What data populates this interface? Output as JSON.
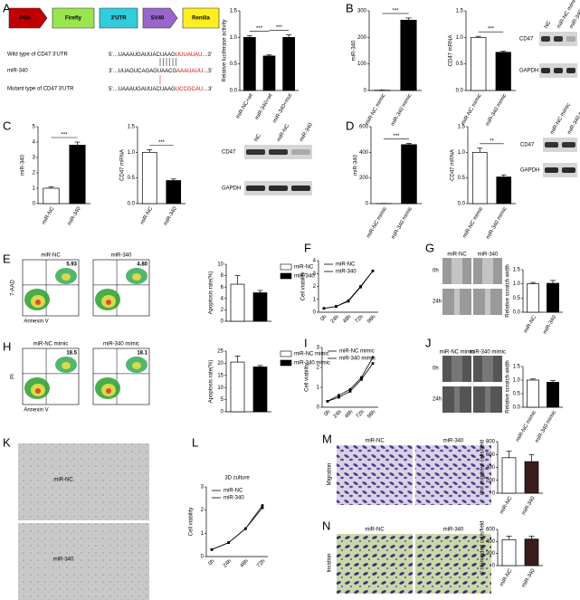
{
  "panel_labels": [
    "A",
    "B",
    "C",
    "D",
    "E",
    "F",
    "G",
    "H",
    "I",
    "J",
    "K",
    "L",
    "M",
    "N"
  ],
  "construct": {
    "parts": [
      "PGK",
      "Firefly",
      "3'UTR",
      "SV40",
      "Renilla"
    ],
    "rows": [
      {
        "label": "Wild type of CD47 3'UTR",
        "seq": "5'…UAAAUGAUUACUAAG",
        "site": "UUUAUAU",
        "end": "…3'"
      },
      {
        "label": "miR-340",
        "seq": "3'…UUAGUCAGAGUAACG",
        "site": "AAAUAUU",
        "end": "…5'"
      },
      {
        "label": "Mutant type of CD47 3'UTR",
        "seq": "5'…UAAAUGAUUACUAAG",
        "site": "UCCGCAU",
        "end": "…3'"
      }
    ]
  },
  "blots": {
    "B": {
      "lanes": [
        "NC",
        "miR-NC mimic",
        "miR-340 mimic"
      ],
      "rows": [
        "CD47",
        "GAPDH"
      ]
    },
    "C": {
      "lanes": [
        "NC",
        "miR-NC",
        "miR-340"
      ],
      "rows": [
        "CD47",
        "GAPDH"
      ]
    },
    "D": {
      "lanes": [
        "miR-NC mimic",
        "miR-340 mimic"
      ],
      "rows": [
        "CD47",
        "GAPDH"
      ]
    }
  },
  "flow": {
    "E": {
      "plots": [
        {
          "title": "miR-NC",
          "value": "5.93"
        },
        {
          "title": "miR-340",
          "value": "4.80"
        }
      ],
      "ylabel": "7-AAD",
      "xlabel": "Annexin V"
    },
    "H": {
      "plots": [
        {
          "title": "miR-NC mimic",
          "value": "18.5"
        },
        {
          "title": "miR-340 mimic",
          "value": "18.1"
        }
      ],
      "ylabel": "PI",
      "xlabel": "Annexin V"
    }
  },
  "scratch": {
    "G": {
      "cols": [
        "miR-NC",
        "miR-340"
      ],
      "rows": [
        "0h",
        "24h"
      ]
    },
    "J": {
      "cols": [
        "miR-NC mimic",
        "miR-340 mimic"
      ],
      "rows": [
        "0h",
        "24h"
      ]
    }
  },
  "sphere": {
    "rows": [
      "miR-NC",
      "miR-340"
    ]
  },
  "transwell": {
    "cols": [
      "miR-NC",
      "miR-340"
    ],
    "rows": [
      "Migration",
      "Invation"
    ]
  },
  "chart_data": [
    {
      "type": "bar",
      "ylabel": "Relative luciferase activity",
      "categories": [
        "miR-NC+wt",
        "miR-340+wt",
        "miR-340+mut"
      ],
      "values": [
        1.0,
        0.65,
        1.0
      ],
      "errors": [
        0.03,
        0.02,
        0.05
      ],
      "colors": [
        "#000000",
        "#000000",
        "#000000"
      ],
      "ylim": [
        0,
        1.5
      ],
      "yticks": [
        {
          "value": 0,
          "label": "0.0"
        },
        0.5,
        {
          "value": 1,
          "label": "1.0"
        },
        {
          "value": 1.5,
          "label": "1.5"
        }
      ],
      "annotations": [
        "***",
        "***"
      ]
    },
    {
      "type": "bar",
      "ylabel": "miR-340",
      "categories": [
        "miR-NC mimic",
        "miR-340 mimic"
      ],
      "values": [
        1,
        265
      ],
      "errors": [
        0.5,
        8
      ],
      "colors": [
        "#ffffff",
        "#000000"
      ],
      "ylim": [
        0,
        300
      ],
      "yticks": [
        0,
        100,
        200,
        300
      ],
      "annotations": [
        "***"
      ]
    },
    {
      "type": "bar",
      "ylabel": "CD47 mRNA",
      "categories": [
        "miR-NC mimic",
        "miR-340 mimic"
      ],
      "values": [
        1.0,
        0.72
      ],
      "errors": [
        0.02,
        0.02
      ],
      "colors": [
        "#ffffff",
        "#000000"
      ],
      "ylim": [
        0,
        1.5
      ],
      "yticks": [
        {
          "value": 0,
          "label": "0.0"
        },
        0.5,
        {
          "value": 1,
          "label": "1.0"
        },
        {
          "value": 1.5,
          "label": "1.5"
        }
      ],
      "annotations": [
        "***"
      ]
    },
    {
      "type": "bar",
      "ylabel": "miR-340",
      "categories": [
        "miR-NC",
        "miR-340"
      ],
      "values": [
        1,
        3.8
      ],
      "errors": [
        0.08,
        0.2
      ],
      "colors": [
        "#ffffff",
        "#000000"
      ],
      "ylim": [
        0,
        5
      ],
      "yticks": [
        0,
        1,
        2,
        3,
        4,
        5
      ],
      "annotations": [
        "***"
      ]
    },
    {
      "type": "bar",
      "ylabel": "CD47 mRNA",
      "categories": [
        "miR-NC",
        "miR-340"
      ],
      "values": [
        1.0,
        0.45
      ],
      "errors": [
        0.05,
        0.03
      ],
      "colors": [
        "#ffffff",
        "#000000"
      ],
      "ylim": [
        0,
        1.5
      ],
      "yticks": [
        {
          "value": 0,
          "label": "0.0"
        },
        0.5,
        {
          "value": 1,
          "label": "1.0"
        },
        {
          "value": 1.5,
          "label": "1.5"
        }
      ],
      "annotations": [
        "***"
      ]
    },
    {
      "type": "bar",
      "ylabel": "miR-340",
      "categories": [
        "miR-NC mimic",
        "miR-340 mimic"
      ],
      "values": [
        1,
        460
      ],
      "errors": [
        1,
        10
      ],
      "colors": [
        "#ffffff",
        "#000000"
      ],
      "ylim": [
        0,
        600
      ],
      "yticks": [
        0,
        200,
        400,
        600
      ],
      "annotations": [
        "***"
      ]
    },
    {
      "type": "bar",
      "ylabel": "CD47 mRNA",
      "categories": [
        "miR-NC mimic",
        "miR-340 mimic"
      ],
      "values": [
        1.0,
        0.52
      ],
      "errors": [
        0.08,
        0.04
      ],
      "colors": [
        "#ffffff",
        "#000000"
      ],
      "ylim": [
        0,
        1.5
      ],
      "yticks": [
        {
          "value": 0,
          "label": "0.0"
        },
        0.5,
        {
          "value": 1,
          "label": "1.0"
        },
        {
          "value": 1.5,
          "label": "1.5"
        }
      ],
      "annotations": [
        "**"
      ]
    },
    {
      "type": "bar",
      "legend": true,
      "ylabel": "Apoptosis rate(%)",
      "categories": [
        "miR-NC",
        "miR-340"
      ],
      "values": [
        6.5,
        5.0
      ],
      "errors": [
        1.5,
        0.4
      ],
      "colors": [
        "#ffffff",
        "#000000"
      ],
      "ylim": [
        0,
        10
      ],
      "yticks": [
        0,
        2,
        4,
        6,
        8,
        10
      ]
    },
    {
      "type": "line",
      "ylabel": "Cell viability",
      "categories": [
        "0h",
        "24h",
        "48h",
        "72h",
        "96h"
      ],
      "series": [
        {
          "name": "miR-NC",
          "color": "#000000",
          "values": [
            0.3,
            0.45,
            0.9,
            2.0,
            3.2
          ]
        },
        {
          "name": "miR-340",
          "color": "#000000",
          "values": [
            0.3,
            0.45,
            0.85,
            1.95,
            3.2
          ]
        }
      ],
      "ylim": [
        0,
        4
      ],
      "yticks": [
        0,
        1,
        2,
        3,
        4
      ]
    },
    {
      "type": "bar",
      "ylabel": "Relative scratch width",
      "categories": [
        "miR-NC",
        "miR-340"
      ],
      "values": [
        1.0,
        1.02
      ],
      "errors": [
        0.05,
        0.1
      ],
      "colors": [
        "#ffffff",
        "#000000"
      ],
      "ylim": [
        0,
        1.5
      ],
      "yticks": [
        {
          "value": 0,
          "label": "0.0"
        },
        0.5,
        {
          "value": 1,
          "label": "1.0"
        },
        {
          "value": 1.5,
          "label": "1.5"
        }
      ]
    },
    {
      "type": "bar",
      "legend": true,
      "ylabel": "Apoptosis rate(%)",
      "categories": [
        "miR-NC mimic",
        "miR-340 mimic"
      ],
      "values": [
        20.5,
        18.5
      ],
      "errors": [
        2.5,
        0.6
      ],
      "colors": [
        "#ffffff",
        "#000000"
      ],
      "ylim": [
        0,
        25
      ],
      "yticks": [
        0,
        5,
        10,
        15,
        20,
        25
      ]
    },
    {
      "type": "line",
      "ylabel": "Cell viability",
      "categories": [
        "0h",
        "24h",
        "48h",
        "72h",
        "96h"
      ],
      "series": [
        {
          "name": "miR-NC mimic",
          "color": "#000000",
          "values": [
            0.3,
            0.6,
            0.9,
            1.5,
            2.5
          ]
        },
        {
          "name": "miR-340 mimic",
          "color": "#000000",
          "values": [
            0.3,
            0.5,
            0.8,
            1.4,
            2.2
          ]
        }
      ],
      "ylim": [
        0,
        3
      ],
      "yticks": [
        0,
        1,
        2,
        3
      ]
    },
    {
      "type": "bar",
      "ylabel": "Relative scratch width",
      "categories": [
        "miR-NC mimic",
        "miR-340 mimic"
      ],
      "values": [
        1.0,
        0.92
      ],
      "errors": [
        0.04,
        0.06
      ],
      "colors": [
        "#ffffff",
        "#000000"
      ],
      "ylim": [
        0,
        1.5
      ],
      "yticks": [
        {
          "value": 0,
          "label": "0.0"
        },
        0.5,
        {
          "value": 1,
          "label": "1.0"
        },
        {
          "value": 1.5,
          "label": "1.5"
        }
      ]
    },
    {
      "type": "line",
      "title": "3D culture",
      "ylabel": "Cell viability",
      "categories": [
        "0h",
        "24h",
        "48h",
        "72h"
      ],
      "series": [
        {
          "name": "miR-NC",
          "color": "#000000",
          "values": [
            0.3,
            0.6,
            1.2,
            2.2
          ]
        },
        {
          "name": "miR-340",
          "color": "#000000",
          "values": [
            0.3,
            0.6,
            1.2,
            2.1
          ]
        }
      ],
      "ylim": [
        0,
        3
      ],
      "yticks": [
        0,
        1,
        2,
        3
      ]
    },
    {
      "type": "bar",
      "ylabel": "# of migrated cells/field",
      "categories": [
        "miR-NC",
        "miR-340"
      ],
      "values": [
        550,
        490
      ],
      "errors": [
        100,
        110
      ],
      "colors": [
        "#ffffff",
        "#3a1c1c"
      ],
      "ylim": [
        0,
        800
      ],
      "yticks": [
        0,
        200,
        400,
        600,
        800
      ]
    },
    {
      "type": "bar",
      "ylabel": "# of invaded cells/field",
      "categories": [
        "miR-NC",
        "miR-340"
      ],
      "values": [
        430,
        440
      ],
      "errors": [
        60,
        50
      ],
      "colors": [
        "#ffffff",
        "#3a1c1c"
      ],
      "ylim": [
        0,
        600
      ],
      "yticks": [
        0,
        200,
        400,
        600
      ]
    }
  ]
}
